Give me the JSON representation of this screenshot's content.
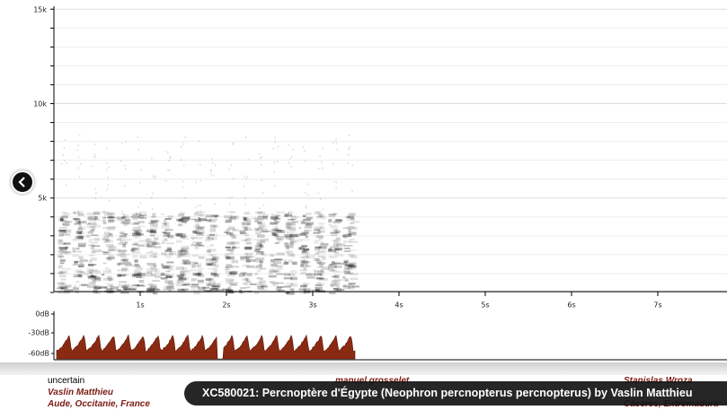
{
  "spectrogram": {
    "y_labels": [
      "15k",
      "10k",
      "5k"
    ],
    "x_labels": [
      "1s",
      "2s",
      "3s",
      "4s",
      "5s",
      "6s",
      "7s"
    ]
  },
  "oscillogram": {
    "y_labels": [
      "0dB",
      "-30dB",
      "-60dB"
    ]
  },
  "recordings": [
    {
      "confidence": "uncertain",
      "recordist": "Vaslin Matthieu",
      "location": "Aude, Occitanie, France"
    },
    {
      "recordist": "manuel grosselet"
    },
    {
      "recordist": "Stanislas Wroza",
      "location": "Cáceres, Extremadura"
    }
  ],
  "caption": "XC580021: Percnoptère d'Égypte (Neophron percnopterus percnopterus) by Vaslin Matthieu"
}
